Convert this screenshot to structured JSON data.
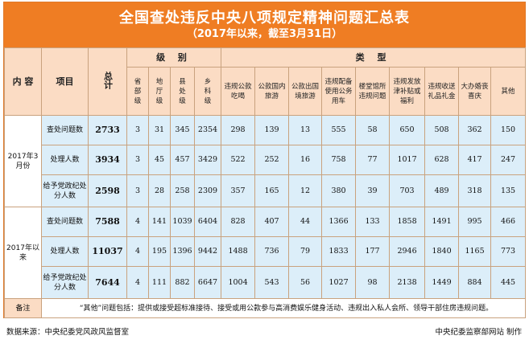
{
  "title": "全国查处违反中央八项规定精神问题汇总表",
  "subtitle": "（2017年以来，截至3月31日）",
  "headers": {
    "content": "内 容",
    "item": "项目",
    "total": "总计",
    "level_group": "级 别",
    "type_group": "类 型",
    "levels": [
      "省部级",
      "地厅级",
      "县处级",
      "乡科级"
    ],
    "types": [
      "违规公款吃喝",
      "公款国内旅游",
      "公款出国境旅游",
      "违规配备使用公务用车",
      "楼堂馆所违规问题",
      "违规发放津补贴或福利",
      "违规收送礼品礼金",
      "大办婚丧喜庆",
      "其他"
    ]
  },
  "sections": [
    {
      "period": "2017年3月份",
      "rows": [
        {
          "item": "查处问题数",
          "total": "2733",
          "levels": [
            "3",
            "31",
            "345",
            "2354"
          ],
          "types": [
            "298",
            "139",
            "13",
            "555",
            "58",
            "650",
            "508",
            "362",
            "150"
          ]
        },
        {
          "item": "处理人数",
          "total": "3934",
          "levels": [
            "3",
            "45",
            "457",
            "3429"
          ],
          "types": [
            "522",
            "252",
            "16",
            "758",
            "77",
            "1017",
            "628",
            "417",
            "247"
          ]
        },
        {
          "item": "给予党政纪处分人数",
          "total": "2598",
          "levels": [
            "3",
            "28",
            "258",
            "2309"
          ],
          "types": [
            "357",
            "165",
            "12",
            "380",
            "39",
            "703",
            "489",
            "318",
            "135"
          ]
        }
      ]
    },
    {
      "period": "2017年以来",
      "rows": [
        {
          "item": "查处问题数",
          "total": "7588",
          "levels": [
            "4",
            "141",
            "1039",
            "6404"
          ],
          "types": [
            "828",
            "407",
            "44",
            "1366",
            "133",
            "1858",
            "1491",
            "995",
            "466"
          ]
        },
        {
          "item": "处理人数",
          "total": "11037",
          "levels": [
            "4",
            "195",
            "1396",
            "9442"
          ],
          "types": [
            "1488",
            "736",
            "79",
            "1833",
            "177",
            "2946",
            "1840",
            "1165",
            "773"
          ]
        },
        {
          "item": "给予党政纪处分人数",
          "total": "7644",
          "levels": [
            "4",
            "111",
            "882",
            "6647"
          ],
          "types": [
            "1004",
            "543",
            "56",
            "1027",
            "98",
            "2138",
            "1449",
            "884",
            "445"
          ]
        }
      ]
    }
  ],
  "note_label": "备注",
  "note_text": "“其他”问题包括：提供或接受超标准接待、接受或用公款参与高消费娱乐健身活动、违规出入私人会所、领导干部住房违规问题。",
  "footer": {
    "source": "数据来源：中央纪委党风政风监督室",
    "producer": "中央纪委监察部网站  制作"
  }
}
